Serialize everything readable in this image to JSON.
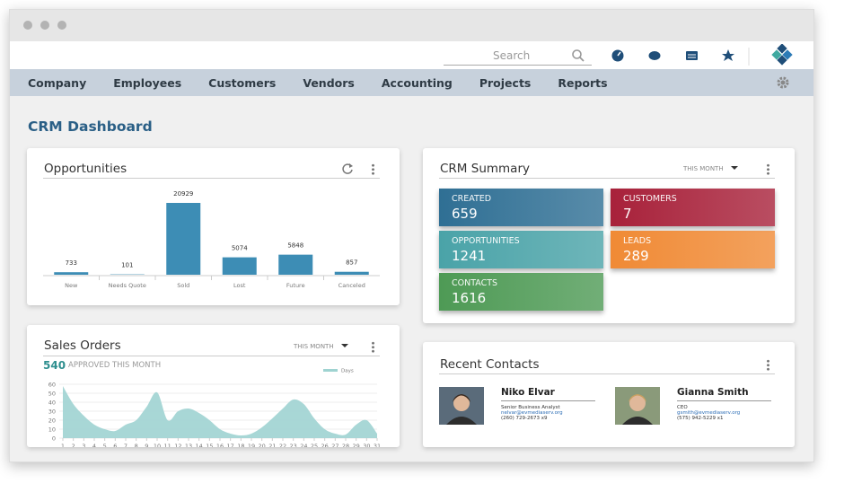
{
  "header": {
    "search_placeholder": "Search"
  },
  "nav": [
    "Company",
    "Employees",
    "Customers",
    "Vendors",
    "Accounting",
    "Projects",
    "Reports"
  ],
  "page_title": "CRM Dashboard",
  "chart_data": [
    {
      "type": "bar",
      "title": "Opportunities",
      "categories": [
        "New",
        "Needs Quote",
        "Sold",
        "Lost",
        "Future",
        "Canceled"
      ],
      "values": [
        733,
        101,
        20929,
        5074,
        5848,
        857
      ],
      "color": "#3d8db5"
    },
    {
      "type": "area",
      "title": "Sales Orders",
      "period": "THIS MONTH",
      "summary_value": 540,
      "summary_label": "APPROVED THIS MONTH",
      "x": [
        1,
        2,
        3,
        4,
        5,
        6,
        7,
        8,
        9,
        10,
        11,
        12,
        13,
        14,
        15,
        16,
        17,
        18,
        19,
        20,
        21,
        22,
        23,
        24,
        25,
        26,
        27,
        28,
        29,
        30,
        31
      ],
      "series": [
        {
          "name": "Days",
          "color": "#9fd3d1",
          "values": [
            58,
            38,
            25,
            15,
            10,
            8,
            15,
            20,
            35,
            51,
            20,
            30,
            33,
            28,
            20,
            10,
            5,
            3,
            5,
            12,
            22,
            33,
            43,
            38,
            22,
            10,
            5,
            4,
            15,
            20,
            5
          ]
        }
      ],
      "xlim": [
        1,
        31
      ],
      "xticks": [
        1,
        2,
        3,
        4,
        5,
        6,
        7,
        8,
        9,
        10,
        11,
        12,
        13,
        14,
        15,
        16,
        17,
        18,
        19,
        20,
        21,
        22,
        23,
        24,
        25,
        26,
        27,
        28,
        29,
        30,
        31
      ],
      "ylim": [
        0,
        60
      ],
      "yticks": [
        0,
        10,
        20,
        30,
        40,
        50,
        60
      ],
      "grid": true
    }
  ],
  "crm_summary": {
    "title": "CRM Summary",
    "period": "THIS MONTH",
    "tiles": [
      {
        "label": "CREATED",
        "value": 659,
        "color": "#2f6f94"
      },
      {
        "label": "CUSTOMERS",
        "value": 7,
        "color": "#a8213a"
      },
      {
        "label": "OPPORTUNITIES",
        "value": 1241,
        "color": "#4aa3a8"
      },
      {
        "label": "LEADS",
        "value": 289,
        "color": "#f08a35"
      },
      {
        "label": "CONTACTS",
        "value": 1616,
        "color": "#4e9a55"
      }
    ]
  },
  "recent_contacts": {
    "title": "Recent Contacts",
    "contacts": [
      {
        "name": "Niko Elvar",
        "role": "Senior Business Analyst",
        "email": "nelvar@evmediaserv.org",
        "phone": "(260) 729-2673 x9"
      },
      {
        "name": "Gianna Smith",
        "role": "CEO",
        "email": "gsmith@evmediaserv.org",
        "phone": "(575) 942-5229 x1"
      }
    ]
  }
}
